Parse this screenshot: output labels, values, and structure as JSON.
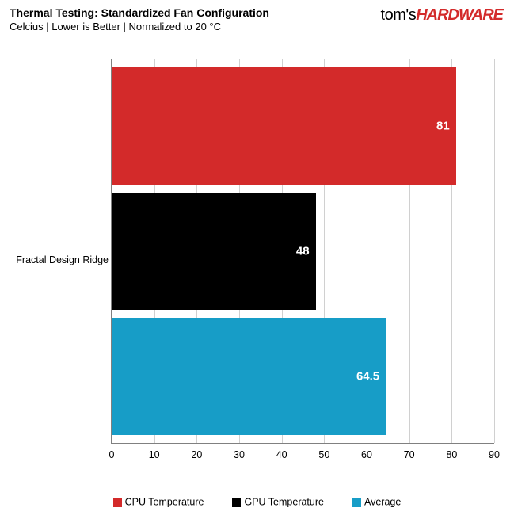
{
  "header": {
    "title": "Thermal Testing: Standardized Fan Configuration",
    "subtitle": "Celcius | Lower is Better | Normalized to 20 °C",
    "logo_prefix": "tom's",
    "logo_suffix": "HARDWARE"
  },
  "chart": {
    "type": "bar-horizontal",
    "category_label": "Fractal Design Ridge",
    "xlim": [
      0,
      90
    ],
    "xtick_step": 10,
    "xticks": [
      0,
      10,
      20,
      30,
      40,
      50,
      60,
      70,
      80,
      90
    ],
    "background_color": "#ffffff",
    "grid_color": "#d0d0d0",
    "axis_color": "#808080",
    "label_fontsize": 12.5,
    "value_fontsize": 15,
    "value_color": "#ffffff",
    "bars": [
      {
        "name": "CPU Temperature",
        "value": 81,
        "color": "#d32a2a",
        "display": "81"
      },
      {
        "name": "GPU Temperature",
        "value": 48,
        "color": "#000000",
        "display": "48"
      },
      {
        "name": "Average",
        "value": 64.5,
        "color": "#179dc7",
        "display": "64.5"
      }
    ]
  },
  "legend": {
    "items": [
      {
        "label": "CPU Temperature",
        "color": "#d32a2a"
      },
      {
        "label": "GPU Temperature",
        "color": "#000000"
      },
      {
        "label": "Average",
        "color": "#179dc7"
      }
    ]
  }
}
